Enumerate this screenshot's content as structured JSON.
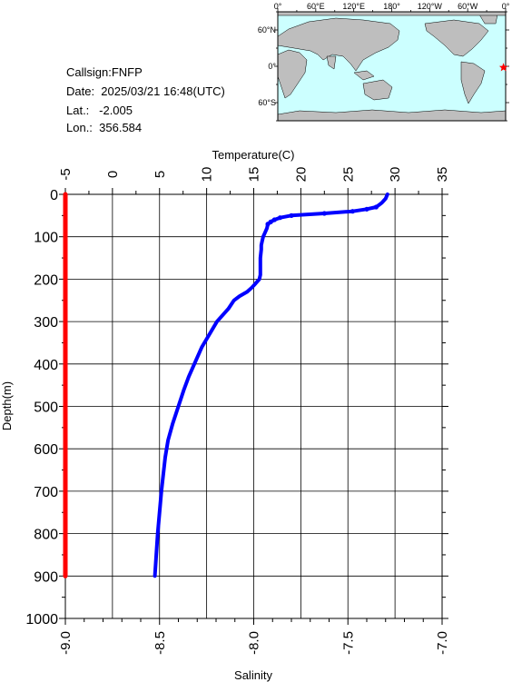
{
  "station": {
    "callsign": "Callsign:FNFP",
    "date": "Date:  2025/03/21 16:48(UTC)",
    "lat": "Lat.:   -2.005",
    "lon": "Lon.:  356.584"
  },
  "map": {
    "top_labels": [
      "0°",
      "60°E",
      "120°E",
      "180°",
      "120°W",
      "60°W",
      "0°"
    ],
    "lat_labels": [
      "60°N",
      "0°",
      "60°S"
    ],
    "station_marker": {
      "lon": 356.584,
      "lat": -2.005
    },
    "ocean_color": "#ccffff",
    "land_color": "#bebebe",
    "marker_color": "#ff0000"
  },
  "chart_data": {
    "type": "line",
    "top_axis_label": "Temperature(C)",
    "bottom_axis_label": "Salinity",
    "y_axis_label": "Depth(m)",
    "temperature_ticks": [
      "-5",
      "0",
      "5",
      "10",
      "15",
      "20",
      "25",
      "30",
      "35"
    ],
    "salinity_ticks": [
      "-9.0",
      "-8.5",
      "-8.0",
      "-7.5",
      "-7.0"
    ],
    "depth_ticks": [
      "0",
      "100",
      "200",
      "300",
      "400",
      "500",
      "600",
      "700",
      "800",
      "900",
      "1000"
    ],
    "temperature_range": [
      -5,
      35
    ],
    "salinity_range": [
      -9.0,
      -7.0
    ],
    "depth_range": [
      0,
      1000
    ],
    "grid": true,
    "series": [
      {
        "name": "Temperature",
        "color": "#0000ff",
        "depth": [
          0,
          5,
          10,
          15,
          20,
          25,
          30,
          35,
          40,
          45,
          50,
          55,
          60,
          65,
          70,
          80,
          90,
          100,
          110,
          120,
          130,
          150,
          170,
          190,
          200,
          210,
          220,
          230,
          240,
          250,
          270,
          300,
          330,
          360,
          400,
          430,
          460,
          500,
          540,
          580,
          620,
          700,
          800,
          900
        ],
        "temperature": [
          29.2,
          29.1,
          29.0,
          28.8,
          28.6,
          28.3,
          28.0,
          27.0,
          25.5,
          22.5,
          19.0,
          17.8,
          17.2,
          16.8,
          16.5,
          16.4,
          16.2,
          16.0,
          15.9,
          15.8,
          15.8,
          15.7,
          15.7,
          15.7,
          15.6,
          15.2,
          14.8,
          14.3,
          13.5,
          12.9,
          12.3,
          11.1,
          10.3,
          9.5,
          8.7,
          8.1,
          7.6,
          7.0,
          6.4,
          5.9,
          5.6,
          5.2,
          4.8,
          4.5
        ]
      },
      {
        "name": "Salinity",
        "color": "#ff0000",
        "depth": [
          0,
          900
        ],
        "salinity": [
          -9.0,
          -9.0
        ]
      }
    ]
  }
}
